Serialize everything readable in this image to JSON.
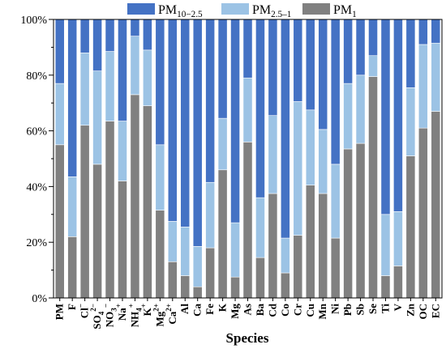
{
  "chart_data": {
    "type": "bar",
    "stacked": true,
    "percent": true,
    "xlabel": "Species",
    "ylabel": "",
    "ylim": [
      0,
      100
    ],
    "yticks": [
      "0%",
      "20%",
      "40%",
      "60%",
      "80%",
      "100%"
    ],
    "grid": false,
    "legend": {
      "position": "top"
    },
    "categories": [
      {
        "label": "PM"
      },
      {
        "label": "F"
      },
      {
        "label": "Cl",
        "sup": "−"
      },
      {
        "label": "SO",
        "sub": "4",
        "sup": "2−"
      },
      {
        "label": "NO",
        "sub": "3",
        "sup": "−"
      },
      {
        "label": "Na",
        "sup": "+"
      },
      {
        "label": "NH",
        "sub": "4",
        "sup": "+"
      },
      {
        "label": "K",
        "sup": "+"
      },
      {
        "label": "Mg",
        "sup": "2+"
      },
      {
        "label": "Ca",
        "sup": "2+"
      },
      {
        "label": "Al"
      },
      {
        "label": "Ca"
      },
      {
        "label": "Fe"
      },
      {
        "label": "K"
      },
      {
        "label": "Mg"
      },
      {
        "label": "As"
      },
      {
        "label": "Ba"
      },
      {
        "label": "Cd"
      },
      {
        "label": "Co"
      },
      {
        "label": "Cr"
      },
      {
        "label": "Cu"
      },
      {
        "label": "Mn"
      },
      {
        "label": "Ni"
      },
      {
        "label": "Pb"
      },
      {
        "label": "Sb"
      },
      {
        "label": "Se"
      },
      {
        "label": "Ti"
      },
      {
        "label": "V"
      },
      {
        "label": "Zn"
      },
      {
        "label": "OC"
      },
      {
        "label": "EC"
      }
    ],
    "series": [
      {
        "name": "PM",
        "sub": "1",
        "color": "#808080",
        "values": [
          55,
          22,
          62,
          48,
          63.5,
          42,
          73,
          69,
          31.5,
          13,
          8,
          4,
          18,
          46,
          7.5,
          56,
          14.5,
          37.5,
          9,
          22.5,
          40.5,
          37.5,
          21.5,
          53.5,
          55.5,
          79.5,
          8,
          11.5,
          51,
          61,
          67
        ]
      },
      {
        "name": "PM",
        "sub": "2.5–1",
        "color": "#9cc3e5",
        "values": [
          22,
          21.5,
          26,
          33.5,
          25,
          21.5,
          21,
          20,
          23.5,
          14.5,
          17.5,
          14.5,
          23.5,
          18.5,
          19.5,
          23,
          21.5,
          28,
          12.5,
          48,
          27,
          23,
          26.5,
          23.5,
          24.5,
          7.5,
          22,
          19.5,
          24.5,
          30,
          24.5
        ]
      },
      {
        "name": "PM",
        "sub": "10−2.5",
        "color": "#4472c4",
        "values": [
          23,
          56.5,
          12,
          18.5,
          11.5,
          36.5,
          6,
          11,
          45,
          72.5,
          74.5,
          81.5,
          58.5,
          35.5,
          73,
          21,
          64,
          34.5,
          78.5,
          29.5,
          32.5,
          39.5,
          52,
          23,
          20,
          13,
          70,
          69,
          24.5,
          9,
          8.5
        ]
      }
    ]
  }
}
